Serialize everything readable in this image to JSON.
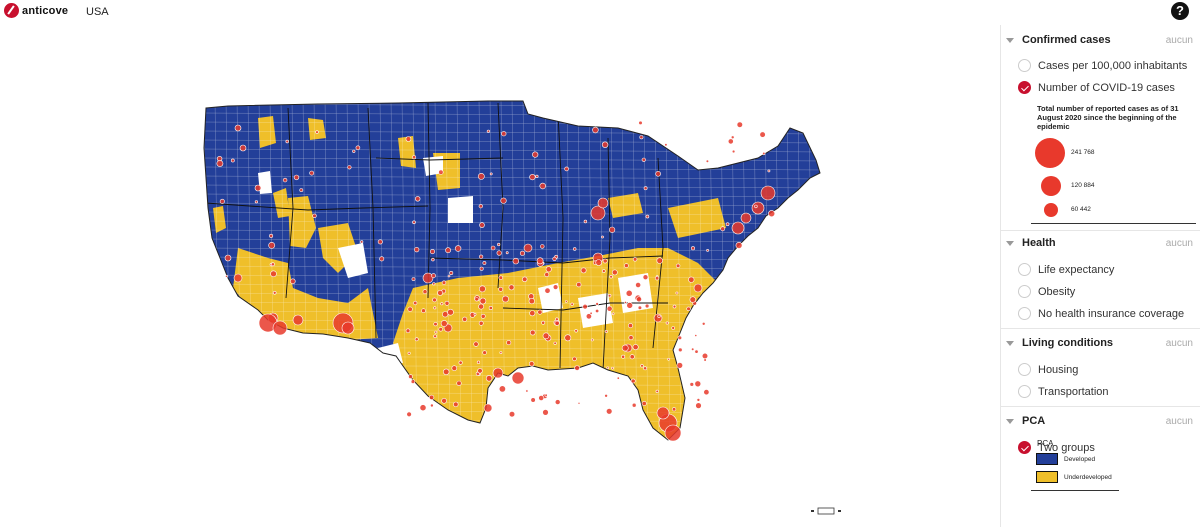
{
  "header": {
    "brand": "anticove",
    "brand_sub": "",
    "country": "USA",
    "help_symbol": "?"
  },
  "colors": {
    "developed": "#233f99",
    "underdeveloped": "#efbf2a",
    "cases": "#e8392c",
    "accent": "#c8102e"
  },
  "panel": {
    "sections": [
      {
        "title": "Confirmed cases",
        "reset": "aucun",
        "options": [
          {
            "label": "Cases per 100,000 inhabitants",
            "checked": false
          },
          {
            "label": "Number of COVID-19 cases",
            "checked": true
          }
        ],
        "legend": {
          "description": "Total number of reported cases as of 31 August 2020 since the beginning of the epidemic",
          "values": [
            "241 768",
            "120 884",
            "60 442"
          ]
        }
      },
      {
        "title": "Health",
        "reset": "aucun",
        "options": [
          {
            "label": "Life expectancy",
            "checked": false
          },
          {
            "label": "Obesity",
            "checked": false
          },
          {
            "label": "No health insurance coverage",
            "checked": false
          }
        ]
      },
      {
        "title": "Living conditions",
        "reset": "aucun",
        "options": [
          {
            "label": "Housing",
            "checked": false
          },
          {
            "label": "Transportation",
            "checked": false
          }
        ]
      },
      {
        "title": "PCA",
        "reset": "aucun",
        "options": [
          {
            "label": "Two groups",
            "checked": true
          }
        ],
        "legend": {
          "title": "PCA",
          "items": [
            "Developed",
            "Underdeveloped"
          ]
        }
      }
    ]
  },
  "map": {
    "layers": [
      "PCA two groups",
      "Number of COVID-19 cases"
    ],
    "groups": [
      "Developed",
      "Underdeveloped"
    ]
  }
}
